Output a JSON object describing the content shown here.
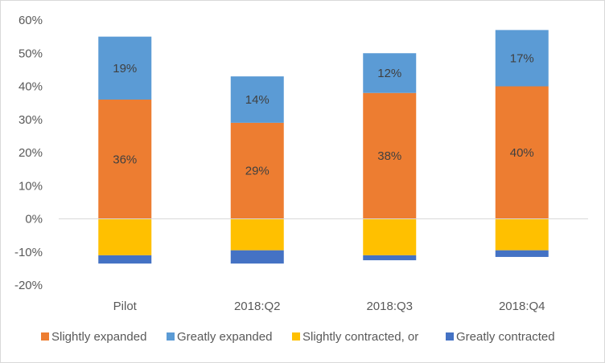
{
  "chart_data": {
    "type": "bar",
    "stacked": true,
    "categories": [
      "Pilot",
      "2018:Q2",
      "2018:Q3",
      "2018:Q4"
    ],
    "ylim": [
      -0.2,
      0.6
    ],
    "yticks": [
      -0.2,
      -0.1,
      0,
      0.1,
      0.2,
      0.3,
      0.4,
      0.5,
      0.6
    ],
    "ytick_labels": [
      "-20%",
      "-10%",
      "0%",
      "10%",
      "20%",
      "30%",
      "40%",
      "50%",
      "60%"
    ],
    "grid": false,
    "legend_position": "bottom",
    "title": "",
    "xlabel": "",
    "ylabel": "",
    "series": [
      {
        "name": "Slightly expanded",
        "color": "#ed7d31",
        "values": [
          0.36,
          0.29,
          0.38,
          0.4
        ],
        "labels": [
          "36%",
          "29%",
          "38%",
          "40%"
        ]
      },
      {
        "name": "Greatly expanded",
        "color": "#5b9bd5",
        "values": [
          0.19,
          0.14,
          0.12,
          0.17
        ],
        "labels": [
          "19%",
          "14%",
          "12%",
          "17%"
        ]
      },
      {
        "name": "Slightly contracted, or",
        "color": "#ffc000",
        "values": [
          -0.11,
          -0.095,
          -0.11,
          -0.095
        ],
        "labels": [
          "",
          "",
          "",
          ""
        ]
      },
      {
        "name": "Greatly contracted",
        "color": "#4472c4",
        "values": [
          -0.025,
          -0.04,
          -0.015,
          -0.02
        ],
        "labels": [
          "",
          "",
          "",
          ""
        ]
      }
    ]
  }
}
